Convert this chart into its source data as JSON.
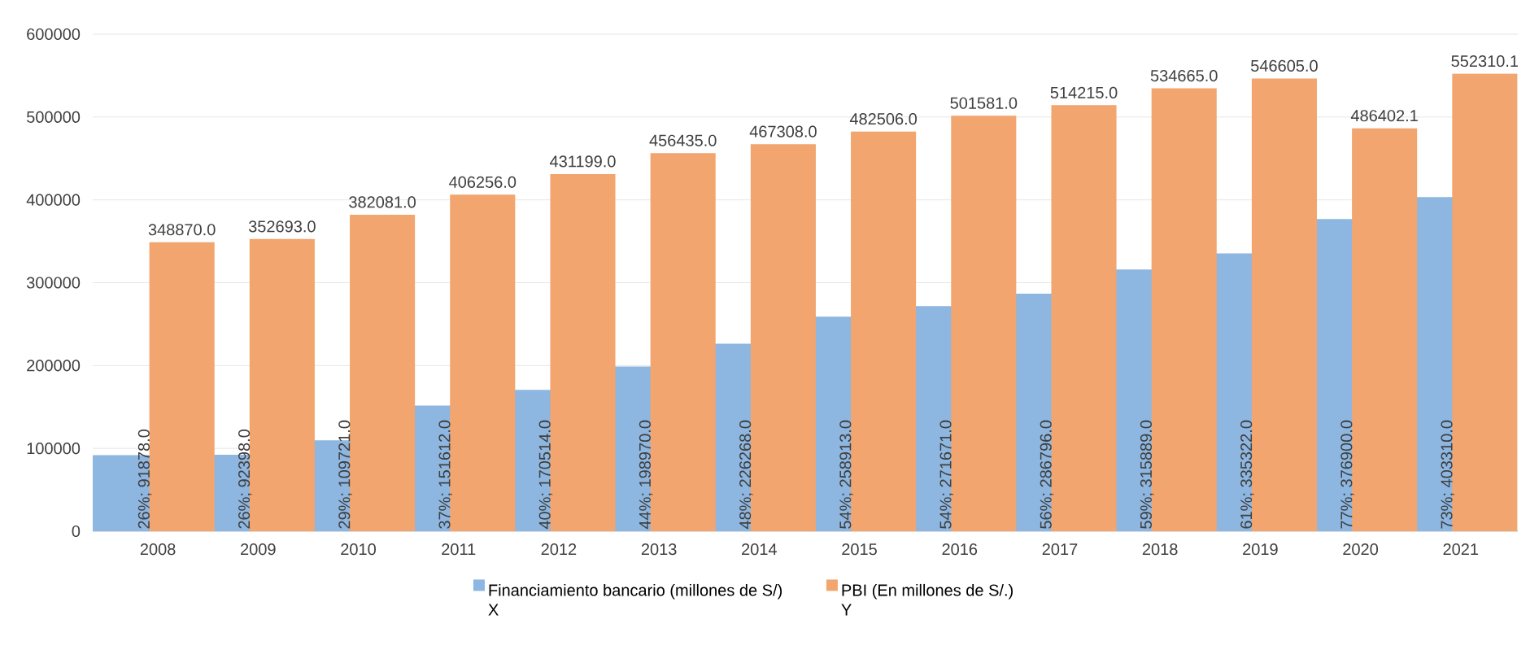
{
  "chart_data": {
    "type": "bar",
    "categories": [
      "2008",
      "2009",
      "2010",
      "2011",
      "2012",
      "2013",
      "2014",
      "2015",
      "2016",
      "2017",
      "2018",
      "2019",
      "2020",
      "2021"
    ],
    "series": [
      {
        "name": "Financiamiento bancario (millones de S/) X",
        "color": "#8db6e0",
        "values": [
          91878.0,
          92398.0,
          109721.0,
          151612.0,
          170514.0,
          198970.0,
          226268.0,
          258913.0,
          271671.0,
          286796.0,
          315889.0,
          335322.0,
          376900.0,
          403310.0
        ],
        "value_labels": [
          "26%; 91878.0",
          "26%; 92398.0",
          "29%; 109721.0",
          "37%; 151612.0",
          "40%; 170514.0",
          "44%; 198970.0",
          "48%; 226268.0",
          "54%; 258913.0",
          "54%; 271671.0",
          "56%; 286796.0",
          "59%; 315889.0",
          "61%; 335322.0",
          "77%; 376900.0",
          "73%; 403310.0"
        ]
      },
      {
        "name": "PBI (En millones de S/.) Y",
        "color": "#f2a56e",
        "values": [
          348870.0,
          352693.0,
          382081.0,
          406256.0,
          431199.0,
          456435.0,
          467308.0,
          482506.0,
          501581.0,
          514215.0,
          534665.0,
          546605.0,
          486402.1,
          552310.1
        ],
        "value_labels": [
          "348870.0",
          "352693.0",
          "382081.0",
          "406256.0",
          "431199.0",
          "456435.0",
          "467308.0",
          "482506.0",
          "501581.0",
          "514215.0",
          "534665.0",
          "546605.0",
          "486402.1",
          "552310.1"
        ]
      }
    ],
    "ylim": [
      0,
      600000
    ],
    "yticks": [
      0,
      100000,
      200000,
      300000,
      400000,
      500000,
      600000
    ],
    "grid": "y",
    "legend": "bottom"
  }
}
